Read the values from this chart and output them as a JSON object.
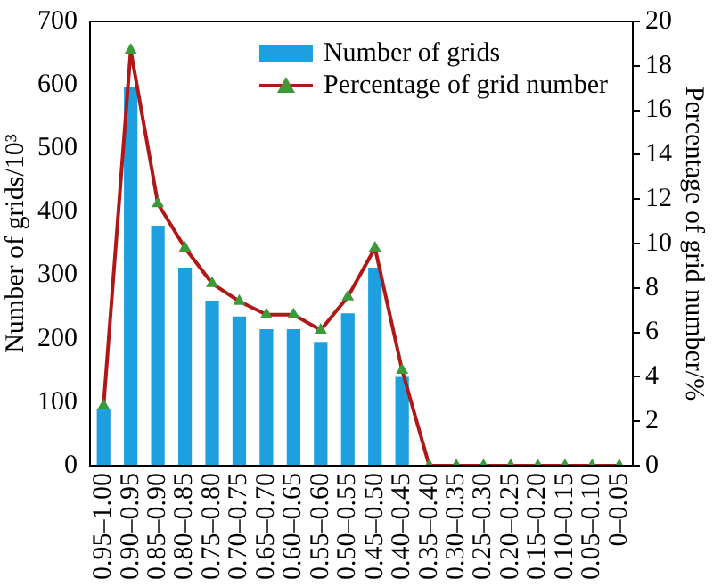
{
  "chart_data": {
    "type": "bar",
    "categories": [
      "0.95–1.00",
      "0.90–0.95",
      "0.85–0.90",
      "0.80–0.85",
      "0.75–0.80",
      "0.70–0.75",
      "0.65–0.70",
      "0.60–0.65",
      "0.55–0.60",
      "0.50–0.55",
      "0.45–0.50",
      "0.40–0.45",
      "0.35–0.40",
      "0.30–0.35",
      "0.25–0.30",
      "0.20–0.25",
      "0.15–0.20",
      "0.10–0.15",
      "0.05–0.10",
      "0–0.05"
    ],
    "series": [
      {
        "name": "Number of grids",
        "color": "#1ea0e0",
        "values": [
          90,
          597,
          378,
          312,
          260,
          235,
          215,
          215,
          195,
          240,
          312,
          140,
          0,
          0,
          0,
          0,
          0,
          0,
          0,
          0
        ]
      },
      {
        "name": "Percentage of grid number",
        "type": "line",
        "axis": "y2",
        "color": "#b01818",
        "values": [
          2.7,
          18.7,
          11.8,
          9.8,
          8.2,
          7.4,
          6.8,
          6.8,
          6.1,
          7.6,
          9.8,
          4.3,
          0,
          0,
          0,
          0,
          0,
          0,
          0,
          0
        ]
      }
    ],
    "ylabel": "Number of grids/10³",
    "y2label": "Percentage of grid number/%",
    "ylim": [
      0,
      700
    ],
    "yticks": [
      0,
      100,
      200,
      300,
      400,
      500,
      600,
      700
    ],
    "y2lim": [
      0,
      20
    ],
    "y2ticks": [
      0,
      2,
      4,
      6,
      8,
      10,
      12,
      14,
      16,
      18,
      20
    ],
    "grid": false,
    "legend": "top right",
    "marker": "triangle",
    "line_style": "solid"
  }
}
